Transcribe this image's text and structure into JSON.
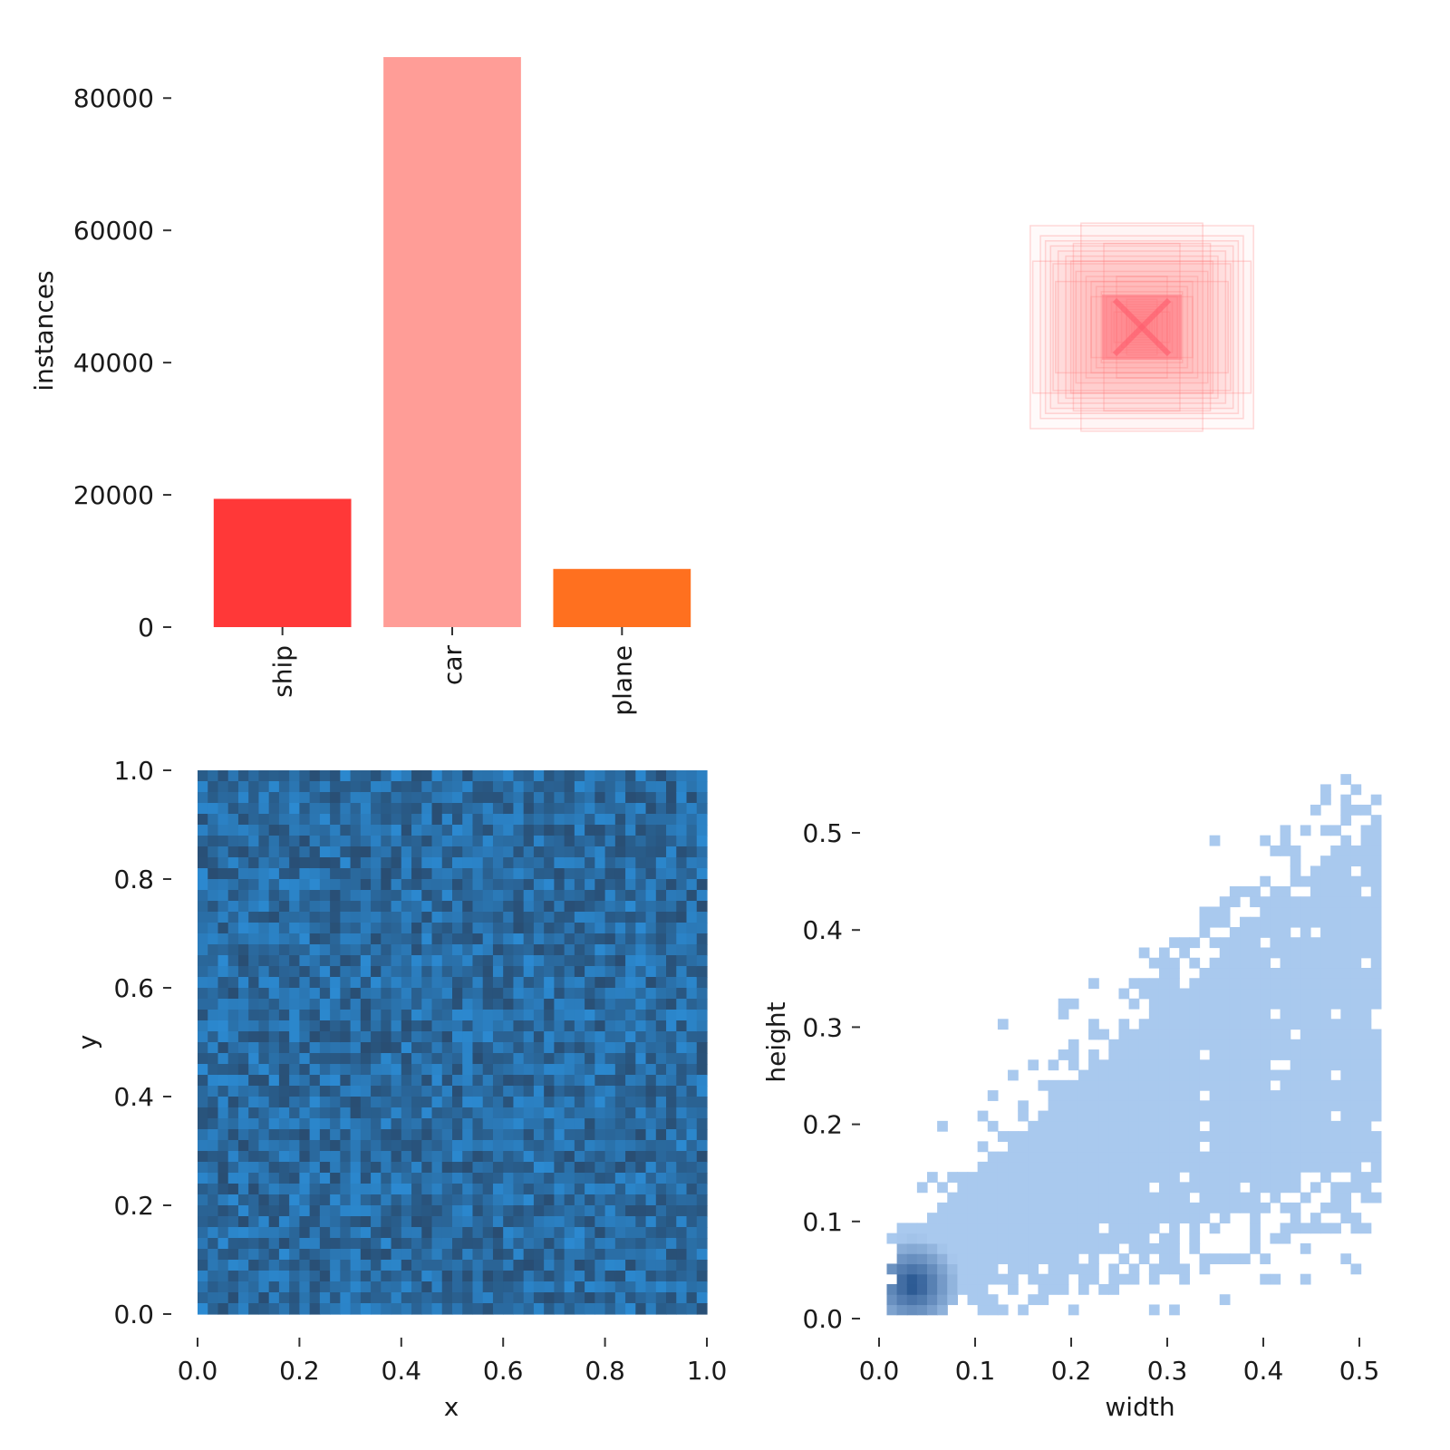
{
  "chart_data": [
    {
      "type": "bar",
      "categories": [
        "ship",
        "car",
        "plane"
      ],
      "values": [
        19400,
        86200,
        8800
      ],
      "colors": [
        "#ff3838",
        "#ff9d97",
        "#ff701f"
      ],
      "xlabel": "",
      "ylabel": "instances",
      "ylim": [
        0,
        86200
      ],
      "yticks": [
        0,
        20000,
        40000,
        60000,
        80000
      ],
      "ytick_labels": [
        "0",
        "20000",
        "40000",
        "60000",
        "80000"
      ],
      "grid": false
    },
    {
      "type": "boxes",
      "description_color": "#ff7a7a",
      "boxes_wh": [
        [
          0.44,
          0.4
        ],
        [
          0.4,
          0.36
        ],
        [
          0.38,
          0.34
        ],
        [
          0.36,
          0.32
        ],
        [
          0.33,
          0.3
        ],
        [
          0.3,
          0.28
        ],
        [
          0.28,
          0.26
        ],
        [
          0.26,
          0.22
        ],
        [
          0.22,
          0.2
        ],
        [
          0.2,
          0.18
        ],
        [
          0.18,
          0.16
        ],
        [
          0.16,
          0.14
        ],
        [
          0.14,
          0.12
        ],
        [
          0.12,
          0.1
        ],
        [
          0.1,
          0.09
        ],
        [
          0.08,
          0.08
        ],
        [
          0.06,
          0.07
        ],
        [
          0.05,
          0.05
        ],
        [
          0.04,
          0.04
        ],
        [
          0.03,
          0.03
        ],
        [
          0.02,
          0.02
        ],
        [
          0.43,
          0.26
        ],
        [
          0.24,
          0.41
        ],
        [
          0.34,
          0.18
        ],
        [
          0.15,
          0.33
        ],
        [
          0.2,
          0.12
        ],
        [
          0.1,
          0.2
        ],
        [
          0.11,
          0.06
        ],
        [
          0.06,
          0.11
        ],
        [
          0.27,
          0.33
        ],
        [
          0.35,
          0.25
        ]
      ]
    },
    {
      "type": "heatmap",
      "xlabel": "x",
      "ylabel": "y",
      "xlim": [
        0.0,
        1.0
      ],
      "ylim": [
        0.0,
        1.0
      ],
      "xticks": [
        "0.0",
        "0.2",
        "0.4",
        "0.6",
        "0.8",
        "1.0"
      ],
      "yticks": [
        "0.0",
        "0.2",
        "0.4",
        "0.6",
        "0.8",
        "1.0"
      ],
      "bins": 50,
      "colormap": [
        "#28415f",
        "#2c92de"
      ],
      "distribution": "approximately uniform over [0,1] x [0,1]"
    },
    {
      "type": "heatmap",
      "xlabel": "width",
      "ylabel": "height",
      "xlim": [
        0.0,
        0.52
      ],
      "ylim": [
        0.0,
        0.56
      ],
      "xticks": [
        "0.0",
        "0.1",
        "0.2",
        "0.3",
        "0.4",
        "0.5"
      ],
      "yticks": [
        "0.0",
        "0.1",
        "0.2",
        "0.3",
        "0.4",
        "0.5"
      ],
      "bins": 50,
      "colormap": [
        "#a9c9ee",
        "#1f4e8a"
      ],
      "peak": [
        0.03,
        0.03
      ],
      "distribution": "dense near origin, positively correlated width vs height, sparse outliers up to width 0.52 / height 0.56"
    }
  ]
}
